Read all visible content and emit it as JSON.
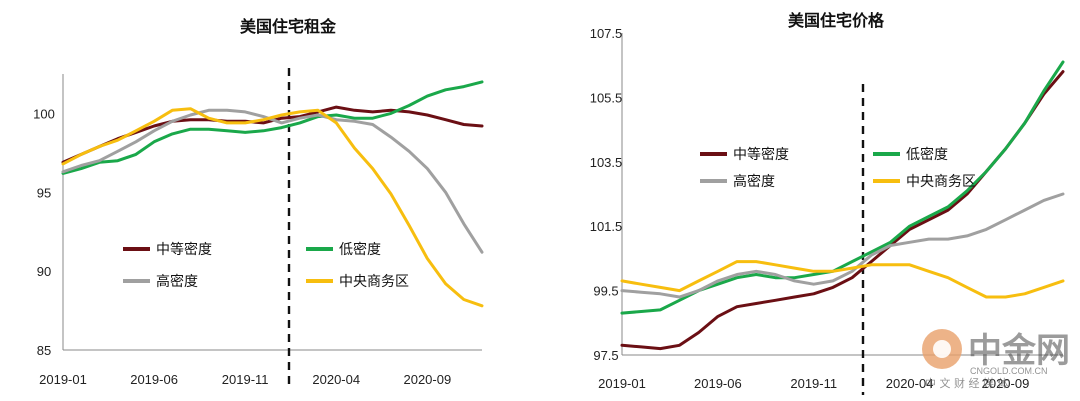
{
  "colors": {
    "mid_density": "#6b0f14",
    "low_density": "#1aa84a",
    "high_density": "#a0a0a0",
    "cbd": "#f7be0f",
    "axis": "#888888",
    "divider": "#111111"
  },
  "legend": {
    "mid_density": "中等密度",
    "low_density": "低密度",
    "high_density": "高密度",
    "cbd": "中央商务区"
  },
  "watermark": {
    "name": "中金网",
    "url": "CNGOLD.COM.CN",
    "sub": "中 文 财 经 媒 体"
  },
  "chart_data": [
    {
      "type": "line",
      "title": "美国住宅租金",
      "xlabel": "",
      "ylabel": "",
      "x_ticks": [
        "2019-01",
        "2019-06",
        "2019-11",
        "2020-04",
        "2020-09"
      ],
      "y_ticks": [
        "100",
        "95",
        "90",
        "85"
      ],
      "ylim": [
        85,
        102.5
      ],
      "x_range": [
        "2019-01",
        "2020-12"
      ],
      "divider_at": "2020-03",
      "series": [
        {
          "name": "中等密度",
          "color_key": "mid_density",
          "x": [
            0,
            1,
            2,
            3,
            4,
            5,
            6,
            7,
            8,
            9,
            10,
            11,
            12,
            13,
            14,
            15,
            16,
            17,
            18,
            19,
            20,
            21,
            22,
            23
          ],
          "values": [
            96.9,
            97.4,
            97.9,
            98.4,
            98.8,
            99.2,
            99.5,
            99.6,
            99.6,
            99.5,
            99.5,
            99.4,
            99.7,
            99.8,
            100.1,
            100.4,
            100.2,
            100.1,
            100.2,
            100.1,
            99.9,
            99.6,
            99.3,
            99.2
          ]
        },
        {
          "name": "低密度",
          "color_key": "low_density",
          "x": [
            0,
            1,
            2,
            3,
            4,
            5,
            6,
            7,
            8,
            9,
            10,
            11,
            12,
            13,
            14,
            15,
            16,
            17,
            18,
            19,
            20,
            21,
            22,
            23
          ],
          "values": [
            96.2,
            96.5,
            96.9,
            97.0,
            97.4,
            98.2,
            98.7,
            99.0,
            99.0,
            98.9,
            98.8,
            98.9,
            99.1,
            99.4,
            99.8,
            99.9,
            99.7,
            99.7,
            100.0,
            100.5,
            101.1,
            101.5,
            101.7,
            102.0
          ]
        },
        {
          "name": "高密度",
          "color_key": "high_density",
          "x": [
            0,
            1,
            2,
            3,
            4,
            5,
            6,
            7,
            8,
            9,
            10,
            11,
            12,
            13,
            14,
            15,
            16,
            17,
            18,
            19,
            20,
            21,
            22,
            23
          ],
          "values": [
            96.3,
            96.7,
            97.0,
            97.6,
            98.2,
            98.9,
            99.5,
            99.9,
            100.2,
            100.2,
            100.1,
            99.8,
            99.4,
            99.7,
            99.9,
            99.6,
            99.5,
            99.3,
            98.5,
            97.6,
            96.5,
            95.0,
            93.0,
            91.2
          ]
        },
        {
          "name": "中央商务区",
          "color_key": "cbd",
          "x": [
            0,
            1,
            2,
            3,
            4,
            5,
            6,
            7,
            8,
            9,
            10,
            11,
            12,
            13,
            14,
            15,
            16,
            17,
            18,
            19,
            20,
            21,
            22,
            23
          ],
          "values": [
            96.8,
            97.4,
            97.9,
            98.3,
            98.9,
            99.5,
            100.2,
            100.3,
            99.7,
            99.4,
            99.4,
            99.6,
            99.9,
            100.1,
            100.2,
            99.4,
            97.8,
            96.5,
            94.9,
            92.9,
            90.8,
            89.2,
            88.2,
            87.8
          ]
        }
      ]
    },
    {
      "type": "line",
      "title": "美国住宅价格",
      "xlabel": "",
      "ylabel": "",
      "x_ticks": [
        "2019-01",
        "2019-06",
        "2019-11",
        "2020-04",
        "2020-09"
      ],
      "y_ticks": [
        "107.5",
        "105.5",
        "103.5",
        "101.5",
        "99.5",
        "97.5"
      ],
      "ylim": [
        97.5,
        107.5
      ],
      "x_range": [
        "2019-01",
        "2020-12"
      ],
      "divider_at": "2020-03",
      "series": [
        {
          "name": "中等密度",
          "color_key": "mid_density",
          "x": [
            0,
            1,
            2,
            3,
            4,
            5,
            6,
            7,
            8,
            9,
            10,
            11,
            12,
            13,
            14,
            15,
            16,
            17,
            18,
            19,
            20,
            21,
            22,
            23
          ],
          "values": [
            97.8,
            97.75,
            97.7,
            97.8,
            98.2,
            98.7,
            99.0,
            99.1,
            99.2,
            99.3,
            99.4,
            99.6,
            99.9,
            100.4,
            100.9,
            101.4,
            101.7,
            102.0,
            102.5,
            103.2,
            103.9,
            104.7,
            105.6,
            106.3
          ]
        },
        {
          "name": "低密度",
          "color_key": "low_density",
          "x": [
            0,
            1,
            2,
            3,
            4,
            5,
            6,
            7,
            8,
            9,
            10,
            11,
            12,
            13,
            14,
            15,
            16,
            17,
            18,
            19,
            20,
            21,
            22,
            23
          ],
          "values": [
            98.8,
            98.85,
            98.9,
            99.2,
            99.5,
            99.7,
            99.9,
            100.0,
            99.9,
            99.9,
            100.0,
            100.1,
            100.4,
            100.7,
            101.0,
            101.5,
            101.8,
            102.1,
            102.6,
            103.2,
            103.9,
            104.7,
            105.7,
            106.6
          ]
        },
        {
          "name": "高密度",
          "color_key": "high_density",
          "x": [
            0,
            1,
            2,
            3,
            4,
            5,
            6,
            7,
            8,
            9,
            10,
            11,
            12,
            13,
            14,
            15,
            16,
            17,
            18,
            19,
            20,
            21,
            22,
            23
          ],
          "values": [
            99.5,
            99.45,
            99.4,
            99.3,
            99.5,
            99.8,
            100.0,
            100.1,
            100.0,
            99.8,
            99.7,
            99.8,
            100.1,
            100.6,
            100.9,
            101.0,
            101.1,
            101.1,
            101.2,
            101.4,
            101.7,
            102.0,
            102.3,
            102.5
          ]
        },
        {
          "name": "中央商务区",
          "color_key": "cbd",
          "x": [
            0,
            1,
            2,
            3,
            4,
            5,
            6,
            7,
            8,
            9,
            10,
            11,
            12,
            13,
            14,
            15,
            16,
            17,
            18,
            19,
            20,
            21,
            22,
            23
          ],
          "values": [
            99.8,
            99.7,
            99.6,
            99.5,
            99.8,
            100.1,
            100.4,
            100.4,
            100.3,
            100.2,
            100.1,
            100.1,
            100.2,
            100.3,
            100.3,
            100.3,
            100.1,
            99.9,
            99.6,
            99.3,
            99.3,
            99.4,
            99.6,
            99.8
          ]
        }
      ]
    }
  ]
}
